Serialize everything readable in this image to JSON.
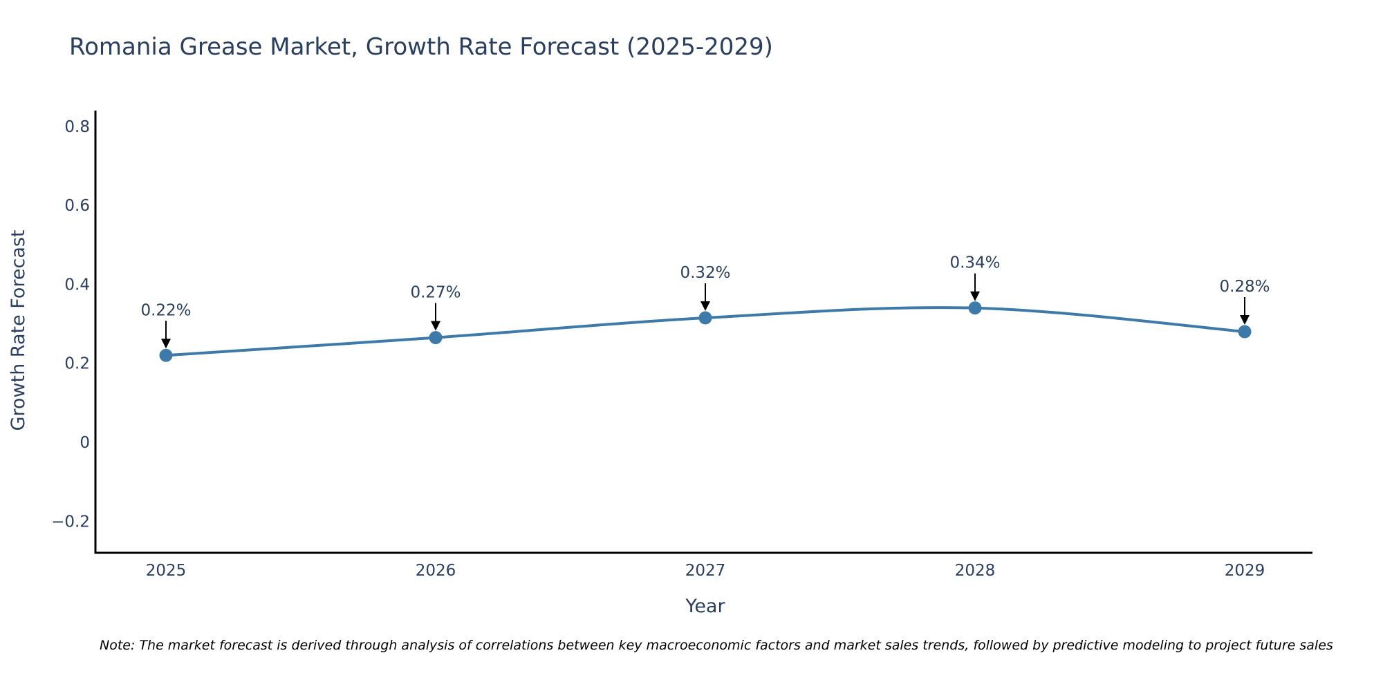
{
  "chart_data": {
    "type": "line",
    "title": "Romania Grease Market, Growth Rate Forecast (2025-2029)",
    "xlabel": "Year",
    "ylabel": "Growth Rate Forecast",
    "categories": [
      "2025",
      "2026",
      "2027",
      "2028",
      "2029"
    ],
    "series": [
      {
        "name": "Growth Rate Forecast",
        "values": [
          0.22,
          0.265,
          0.315,
          0.34,
          0.28
        ],
        "labels": [
          "0.22%",
          "0.27%",
          "0.32%",
          "0.34%",
          "0.28%"
        ]
      }
    ],
    "yticks": [
      -0.2,
      0,
      0.2,
      0.4,
      0.6,
      0.8
    ],
    "ytick_labels": [
      "−0.2",
      "0",
      "0.2",
      "0.4",
      "0.6",
      "0.8"
    ],
    "ylim": [
      -0.28,
      0.84
    ],
    "grid": false,
    "line_shape": "spline",
    "note": "Note: The market forecast is derived through analysis of correlations between key macroeconomic factors and market sales trends, followed by predictive modeling to project future sales"
  },
  "colors": {
    "line": "#3d7aa9",
    "marker": "#3d7aa9",
    "axis": "#000000",
    "text": "#2a3f5f",
    "arrow": "#000000"
  }
}
